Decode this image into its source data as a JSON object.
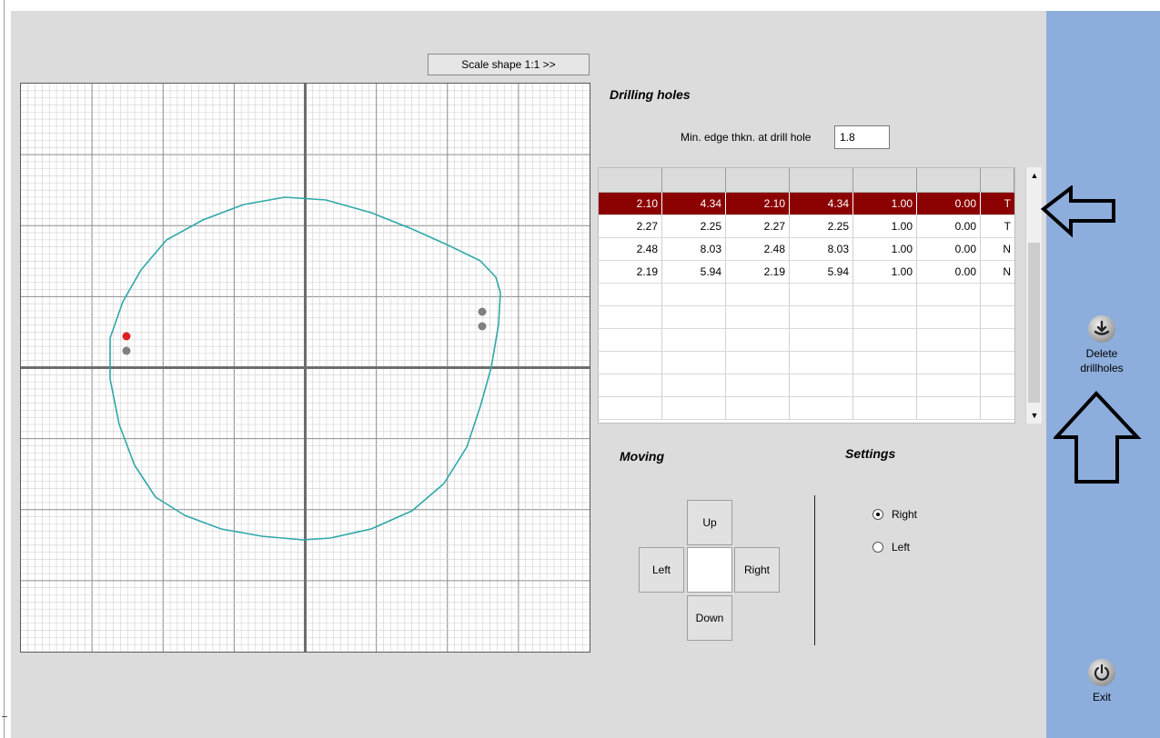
{
  "scale_button": {
    "label": "Scale shape 1:1 >>"
  },
  "drilling": {
    "title": "Drilling holes",
    "min_edge_label": "Min. edge thkn. at drill hole",
    "min_edge_value": "1.8"
  },
  "table": {
    "headers": [
      "",
      "",
      "",
      "",
      "",
      "",
      ""
    ],
    "rows": [
      [
        "2.10",
        "4.34",
        "2.10",
        "4.34",
        "1.00",
        "0.00",
        "T"
      ],
      [
        "2.27",
        "2.25",
        "2.27",
        "2.25",
        "1.00",
        "0.00",
        "T"
      ],
      [
        "2.48",
        "8.03",
        "2.48",
        "8.03",
        "1.00",
        "0.00",
        "N"
      ],
      [
        "2.19",
        "5.94",
        "2.19",
        "5.94",
        "1.00",
        "0.00",
        "N"
      ],
      [
        "",
        "",
        "",
        "",
        "",
        "",
        ""
      ],
      [
        "",
        "",
        "",
        "",
        "",
        "",
        ""
      ],
      [
        "",
        "",
        "",
        "",
        "",
        "",
        ""
      ],
      [
        "",
        "",
        "",
        "",
        "",
        "",
        ""
      ],
      [
        "",
        "",
        "",
        "",
        "",
        "",
        ""
      ],
      [
        "",
        "",
        "",
        "",
        "",
        "",
        ""
      ]
    ],
    "selected_row": 0
  },
  "moving": {
    "title": "Moving",
    "up": "Up",
    "left": "Left",
    "right": "Right",
    "down": "Down"
  },
  "settings": {
    "title": "Settings",
    "options": [
      {
        "label": "Right",
        "checked": true
      },
      {
        "label": "Left",
        "checked": false
      }
    ]
  },
  "side_panel": {
    "delete_label_line1": "Delete",
    "delete_label_line2": "drillholes",
    "delete_icon": "delete-drill-icon",
    "exit_label": "Exit",
    "exit_icon": "power-icon"
  },
  "colors": {
    "side_panel": "#8daedc",
    "app_background": "#dcdcdc",
    "selected_row": "#8b0000",
    "shape_outline": "#2fa8a8",
    "active_drill_hole": "#e02020",
    "drill_hole": "#808080"
  }
}
